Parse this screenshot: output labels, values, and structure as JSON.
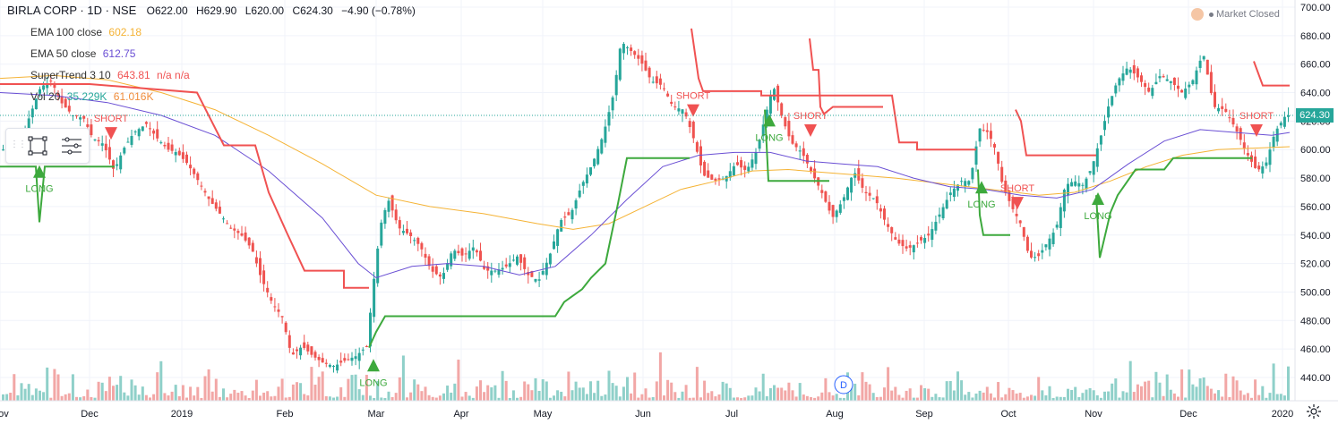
{
  "header": {
    "symbol": "BIRLA CORP · 1D · NSE",
    "open_label": "O",
    "open": "622.00",
    "high_label": "H",
    "high": "629.90",
    "low_label": "L",
    "low": "620.00",
    "close_label": "C",
    "close": "624.30",
    "change": "−4.90 (−0.78%)"
  },
  "legend": {
    "ema100_label": "EMA 100 close",
    "ema100_value": "602.18",
    "ema50_label": "EMA 50 close",
    "ema50_value": "612.75",
    "supertrend_label": "SuperTrend 3 10",
    "supertrend_value": "643.81",
    "supertrend_na": "n/a n/a",
    "vol_label": "Vol 20",
    "vol_value_1": "35.229K",
    "vol_value_2": "61.016K"
  },
  "market_status": "Market Closed",
  "last_price_label": "624.30",
  "dividend_marker": "D",
  "colors": {
    "up": "#26a69a",
    "down": "#ef5350",
    "ema100": "#f5b335",
    "ema50": "#6a4fd4",
    "st_up": "#3da93d",
    "st_down": "#f05252",
    "vol_up": "#8fd0c9",
    "vol_down": "#f2a7a6"
  },
  "chart_data": {
    "type": "candlestick",
    "title": "BIRLA CORP · 1D · NSE",
    "x_tick_labels": [
      "Nov",
      "Dec",
      "2019",
      "Feb",
      "Mar",
      "Apr",
      "May",
      "Jun",
      "Jul",
      "Aug",
      "Sep",
      "Oct",
      "Nov",
      "Dec",
      "2020"
    ],
    "y_tick_labels": [
      "440.00",
      "460.00",
      "480.00",
      "500.00",
      "520.00",
      "540.00",
      "560.00",
      "580.00",
      "600.00",
      "620.00",
      "640.00",
      "660.00",
      "680.00",
      "700.00"
    ],
    "ylim": [
      430,
      703
    ],
    "date_range": [
      "2018-11-01",
      "2020-01-03"
    ],
    "close": [
      [
        20,
        600
      ],
      [
        34,
        624
      ],
      [
        46,
        644
      ],
      [
        58,
        648
      ],
      [
        70,
        632
      ],
      [
        82,
        624
      ],
      [
        94,
        622
      ],
      [
        104,
        608
      ],
      [
        116,
        604
      ],
      [
        128,
        585
      ],
      [
        138,
        600
      ],
      [
        150,
        612
      ],
      [
        164,
        618
      ],
      [
        176,
        608
      ],
      [
        188,
        600
      ],
      [
        198,
        598
      ],
      [
        210,
        590
      ],
      [
        222,
        578
      ],
      [
        234,
        565
      ],
      [
        246,
        555
      ],
      [
        258,
        545
      ],
      [
        270,
        540
      ],
      [
        282,
        530
      ],
      [
        292,
        510
      ],
      [
        304,
        493
      ],
      [
        316,
        482
      ],
      [
        326,
        455
      ],
      [
        338,
        462
      ],
      [
        350,
        455
      ],
      [
        362,
        450
      ],
      [
        374,
        448
      ],
      [
        386,
        452
      ],
      [
        398,
        455
      ],
      [
        410,
        462
      ],
      [
        420,
        520
      ],
      [
        426,
        548
      ],
      [
        434,
        565
      ],
      [
        446,
        545
      ],
      [
        458,
        540
      ],
      [
        470,
        532
      ],
      [
        482,
        515
      ],
      [
        494,
        510
      ],
      [
        506,
        530
      ],
      [
        518,
        525
      ],
      [
        530,
        532
      ],
      [
        542,
        515
      ],
      [
        554,
        515
      ],
      [
        566,
        518
      ],
      [
        578,
        525
      ],
      [
        590,
        512
      ],
      [
        602,
        508
      ],
      [
        614,
        525
      ],
      [
        626,
        550
      ],
      [
        638,
        555
      ],
      [
        650,
        575
      ],
      [
        662,
        590
      ],
      [
        674,
        610
      ],
      [
        686,
        640
      ],
      [
        694,
        676
      ],
      [
        704,
        670
      ],
      [
        716,
        662
      ],
      [
        728,
        648
      ],
      [
        740,
        645
      ],
      [
        752,
        630
      ],
      [
        764,
        628
      ],
      [
        774,
        610
      ],
      [
        786,
        582
      ],
      [
        798,
        578
      ],
      [
        810,
        580
      ],
      [
        822,
        590
      ],
      [
        834,
        585
      ],
      [
        846,
        600
      ],
      [
        856,
        626
      ],
      [
        864,
        645
      ],
      [
        874,
        622
      ],
      [
        884,
        605
      ],
      [
        896,
        598
      ],
      [
        906,
        585
      ],
      [
        918,
        570
      ],
      [
        930,
        552
      ],
      [
        942,
        565
      ],
      [
        954,
        585
      ],
      [
        966,
        570
      ],
      [
        978,
        565
      ],
      [
        990,
        548
      ],
      [
        1002,
        535
      ],
      [
        1014,
        530
      ],
      [
        1026,
        535
      ],
      [
        1038,
        540
      ],
      [
        1050,
        555
      ],
      [
        1062,
        570
      ],
      [
        1074,
        578
      ],
      [
        1084,
        578
      ],
      [
        1094,
        615
      ],
      [
        1104,
        612
      ],
      [
        1112,
        600
      ],
      [
        1120,
        575
      ],
      [
        1130,
        560
      ],
      [
        1140,
        548
      ],
      [
        1150,
        524
      ],
      [
        1160,
        525
      ],
      [
        1170,
        535
      ],
      [
        1180,
        545
      ],
      [
        1190,
        575
      ],
      [
        1200,
        578
      ],
      [
        1210,
        575
      ],
      [
        1220,
        588
      ],
      [
        1230,
        610
      ],
      [
        1238,
        630
      ],
      [
        1248,
        648
      ],
      [
        1260,
        658
      ],
      [
        1272,
        650
      ],
      [
        1284,
        640
      ],
      [
        1296,
        652
      ],
      [
        1308,
        648
      ],
      [
        1320,
        640
      ],
      [
        1332,
        648
      ],
      [
        1344,
        668
      ],
      [
        1356,
        630
      ],
      [
        1368,
        628
      ],
      [
        1380,
        615
      ],
      [
        1392,
        598
      ],
      [
        1404,
        585
      ],
      [
        1414,
        590
      ],
      [
        1424,
        612
      ],
      [
        1436,
        624
      ]
    ],
    "ema100": [
      [
        0,
        650
      ],
      [
        60,
        652
      ],
      [
        120,
        649
      ],
      [
        180,
        640
      ],
      [
        240,
        628
      ],
      [
        300,
        610
      ],
      [
        360,
        590
      ],
      [
        420,
        568
      ],
      [
        480,
        560
      ],
      [
        540,
        555
      ],
      [
        600,
        548
      ],
      [
        640,
        544
      ],
      [
        680,
        548
      ],
      [
        720,
        560
      ],
      [
        760,
        572
      ],
      [
        800,
        578
      ],
      [
        840,
        585
      ],
      [
        880,
        586
      ],
      [
        920,
        584
      ],
      [
        960,
        582
      ],
      [
        1000,
        580
      ],
      [
        1040,
        577
      ],
      [
        1080,
        574
      ],
      [
        1120,
        571
      ],
      [
        1160,
        568
      ],
      [
        1200,
        570
      ],
      [
        1240,
        578
      ],
      [
        1280,
        588
      ],
      [
        1320,
        596
      ],
      [
        1360,
        600
      ],
      [
        1400,
        601
      ],
      [
        1440,
        602
      ]
    ],
    "ema50": [
      [
        0,
        640
      ],
      [
        60,
        638
      ],
      [
        120,
        633
      ],
      [
        180,
        624
      ],
      [
        240,
        610
      ],
      [
        300,
        585
      ],
      [
        360,
        552
      ],
      [
        400,
        520
      ],
      [
        420,
        510
      ],
      [
        460,
        518
      ],
      [
        500,
        520
      ],
      [
        540,
        518
      ],
      [
        580,
        512
      ],
      [
        620,
        518
      ],
      [
        660,
        540
      ],
      [
        700,
        565
      ],
      [
        740,
        588
      ],
      [
        780,
        596
      ],
      [
        820,
        598
      ],
      [
        860,
        598
      ],
      [
        900,
        592
      ],
      [
        940,
        590
      ],
      [
        980,
        588
      ],
      [
        1020,
        580
      ],
      [
        1060,
        574
      ],
      [
        1100,
        572
      ],
      [
        1140,
        568
      ],
      [
        1180,
        566
      ],
      [
        1220,
        572
      ],
      [
        1260,
        590
      ],
      [
        1300,
        606
      ],
      [
        1340,
        614
      ],
      [
        1380,
        612
      ],
      [
        1420,
        610
      ],
      [
        1440,
        612
      ]
    ],
    "supertrend_down_segments": [
      [
        [
          0,
          646
        ],
        [
          100,
          646
        ],
        [
          220,
          640
        ],
        [
          250,
          603
        ],
        [
          285,
          603
        ],
        [
          300,
          570
        ],
        [
          320,
          542
        ],
        [
          340,
          515
        ],
        [
          384,
          515
        ],
        [
          384,
          503
        ],
        [
          412,
          503
        ]
      ],
      [
        [
          772,
          685
        ],
        [
          780,
          650
        ],
        [
          785,
          641
        ],
        [
          850,
          641
        ],
        [
          850,
          638
        ],
        [
          960,
          638
        ],
        [
          996,
          638
        ],
        [
          1004,
          605
        ],
        [
          1024,
          605
        ],
        [
          1024,
          600
        ],
        [
          1090,
          600
        ]
      ],
      [
        [
          904,
          678
        ],
        [
          908,
          656
        ],
        [
          914,
          656
        ],
        [
          916,
          630
        ],
        [
          920,
          625
        ],
        [
          930,
          630
        ],
        [
          986,
          630
        ]
      ],
      [
        [
          1134,
          628
        ],
        [
          1140,
          620
        ],
        [
          1146,
          596
        ],
        [
          1224,
          596
        ]
      ],
      [
        [
          1400,
          662
        ],
        [
          1410,
          645
        ],
        [
          1440,
          645
        ]
      ]
    ],
    "supertrend_up_segments": [
      [
        [
          0,
          588
        ],
        [
          20,
          588
        ],
        [
          40,
          588
        ],
        [
          44,
          549
        ],
        [
          50,
          588
        ],
        [
          110,
          588
        ],
        [
          128,
          588
        ]
      ],
      [
        [
          412,
          461
        ],
        [
          420,
          472
        ],
        [
          430,
          483
        ],
        [
          620,
          483
        ],
        [
          630,
          493
        ],
        [
          650,
          502
        ],
        [
          660,
          510
        ],
        [
          676,
          520
        ],
        [
          690,
          562
        ],
        [
          700,
          594
        ],
        [
          770,
          594
        ]
      ],
      [
        [
          854,
          628
        ],
        [
          858,
          578
        ],
        [
          870,
          578
        ],
        [
          874,
          578
        ],
        [
          926,
          578
        ]
      ],
      [
        [
          1092,
          586
        ],
        [
          1094,
          554
        ],
        [
          1098,
          540
        ],
        [
          1128,
          540
        ]
      ],
      [
        [
          1224,
          568
        ],
        [
          1228,
          524
        ],
        [
          1240,
          556
        ],
        [
          1248,
          568
        ],
        [
          1268,
          586
        ],
        [
          1300,
          586
        ],
        [
          1310,
          594
        ],
        [
          1398,
          594
        ]
      ]
    ],
    "signals": [
      {
        "label": "LONG",
        "type": "long",
        "x": 44,
        "y": 584
      },
      {
        "label": "SHORT",
        "type": "short",
        "x": 124,
        "y": 612
      },
      {
        "label": "LONG",
        "type": "long",
        "x": 417,
        "y": 448
      },
      {
        "label": "SHORT",
        "type": "short",
        "x": 774,
        "y": 628
      },
      {
        "label": "LONG",
        "type": "long",
        "x": 859,
        "y": 620
      },
      {
        "label": "SHORT",
        "type": "short",
        "x": 905,
        "y": 614
      },
      {
        "label": "LONG",
        "type": "long",
        "x": 1096,
        "y": 573
      },
      {
        "label": "SHORT",
        "type": "short",
        "x": 1136,
        "y": 563
      },
      {
        "label": "LONG",
        "type": "long",
        "x": 1226,
        "y": 565
      },
      {
        "label": "SHORT",
        "type": "short",
        "x": 1403,
        "y": 614
      }
    ]
  }
}
